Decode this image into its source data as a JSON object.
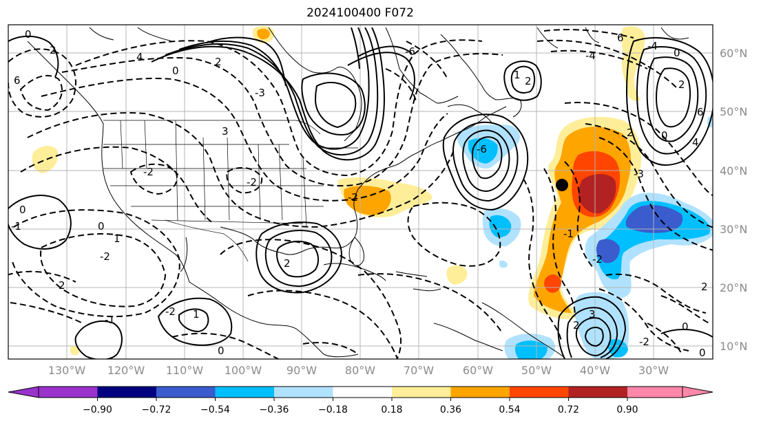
{
  "title": "2024100400 F072",
  "map": {
    "lon_labels": [
      "130°W",
      "120°W",
      "110°W",
      "100°W",
      "90°W",
      "80°W",
      "70°W",
      "60°W",
      "50°W",
      "40°W",
      "30°W"
    ],
    "lat_labels": [
      "60°N",
      "50°N",
      "40°N",
      "30°N",
      "20°N",
      "10°N"
    ],
    "contour_labels": [
      "0",
      "2",
      "4",
      "6",
      "0",
      "2",
      "-2",
      "3",
      "-2",
      "-3",
      "0",
      "1",
      "0",
      "-2",
      "2",
      "-1",
      "1",
      "2",
      "-6",
      "1",
      "2",
      "-2",
      "-6",
      "-4",
      "6",
      "0",
      "2",
      "4",
      "-4",
      "6",
      "2",
      "-3",
      "0",
      "-1",
      "3",
      "-2",
      "-2",
      "0",
      "2",
      "0",
      "2",
      "-2",
      "-1",
      "0"
    ]
  },
  "colorbar": {
    "ticks": [
      "−0.90",
      "−0.72",
      "−0.54",
      "−0.36",
      "−0.18",
      "0.18",
      "0.36",
      "0.54",
      "0.72",
      "0.90"
    ],
    "colors": [
      "#9933cc",
      "#000080",
      "#3a5ccc",
      "#00bfff",
      "#b0e2ff",
      "#ffffff",
      "#ffee99",
      "#ffa500",
      "#ff4500",
      "#b22222",
      "#ff88aa"
    ]
  }
}
